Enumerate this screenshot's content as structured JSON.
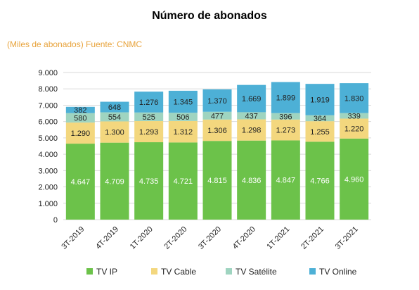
{
  "title": "Número de abonados",
  "subtitle": "(Miles de abonados) Fuente: CNMC",
  "chart_data": {
    "type": "bar",
    "stacked": true,
    "categories": [
      "3T-2019",
      "4T-2019",
      "1T-2020",
      "2T-2020",
      "3T-2020",
      "4T-2020",
      "1T-2021",
      "2T-2021",
      "3T-2021"
    ],
    "series": [
      {
        "name": "TV IP",
        "color": "#6cc24a",
        "label_color": "#ffffff",
        "values": [
          4647,
          4709,
          4735,
          4721,
          4815,
          4836,
          4847,
          4766,
          4960
        ],
        "labels": [
          "4.647",
          "4.709",
          "4.735",
          "4.721",
          "4.815",
          "4.836",
          "4.847",
          "4.766",
          "4.960"
        ]
      },
      {
        "name": "TV Cable",
        "color": "#f3d77e",
        "label_color": "#222222",
        "values": [
          1290,
          1300,
          1293,
          1312,
          1306,
          1298,
          1273,
          1255,
          1220
        ],
        "labels": [
          "1.290",
          "1.300",
          "1.293",
          "1.312",
          "1.306",
          "1.298",
          "1.273",
          "1.255",
          "1.220"
        ]
      },
      {
        "name": "TV Satélite",
        "color": "#9fd4c0",
        "label_color": "#222222",
        "values": [
          580,
          554,
          525,
          506,
          477,
          437,
          396,
          364,
          339
        ],
        "labels": [
          "580",
          "554",
          "525",
          "506",
          "477",
          "437",
          "396",
          "364",
          "339"
        ]
      },
      {
        "name": "TV Online",
        "color": "#4db0d6",
        "label_color": "#222222",
        "values": [
          382,
          648,
          1276,
          1345,
          1370,
          1669,
          1899,
          1919,
          1830
        ],
        "labels": [
          "382",
          "648",
          "1.276",
          "1.345",
          "1.370",
          "1.669",
          "1.899",
          "1.919",
          "1.830"
        ]
      }
    ],
    "ylim": [
      0,
      9000
    ],
    "yticks": [
      0,
      1000,
      2000,
      3000,
      4000,
      5000,
      6000,
      7000,
      8000,
      9000
    ],
    "ytick_labels": [
      "0",
      "1.000",
      "2.000",
      "3.000",
      "4.000",
      "5.000",
      "6.000",
      "7.000",
      "8.000",
      "9.000"
    ],
    "grid": true,
    "legend_position": "bottom"
  }
}
